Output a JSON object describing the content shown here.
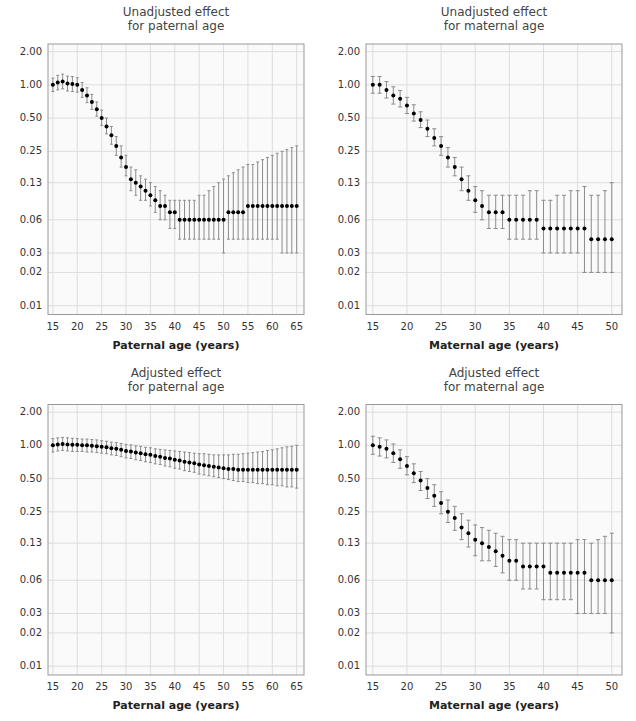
{
  "chart_data": [
    {
      "type": "scatter",
      "title": "Unadjusted effect\nfor paternal age",
      "x_label": "Paternal age (years)",
      "log": "y",
      "grid": true,
      "color": "#000000",
      "xlim": [
        14.0,
        66.5
      ],
      "xticks": [
        15,
        20,
        25,
        30,
        35,
        40,
        45,
        50,
        55,
        60,
        65
      ],
      "ylim": [
        0.008317637711026709,
        2.344228815319922
      ],
      "yticks": [
        0.01,
        0.02,
        0.03,
        0.06,
        0.13,
        0.25,
        {
          "value": 0.5,
          "label": "0.50"
        },
        {
          "value": 1.0,
          "label": "1.00"
        },
        {
          "value": 2.0,
          "label": "2.00"
        }
      ],
      "x": [
        15,
        16,
        17,
        18,
        19,
        20,
        21,
        22,
        23,
        24,
        25,
        26,
        27,
        28,
        29,
        30,
        31,
        32,
        33,
        34,
        35,
        36,
        37,
        38,
        39,
        40,
        41,
        42,
        43,
        44,
        45,
        46,
        47,
        48,
        49,
        50,
        51,
        52,
        53,
        54,
        55,
        56,
        57,
        58,
        59,
        60,
        61,
        62,
        63,
        64,
        65
      ],
      "values": [
        1.0,
        1.05,
        1.07,
        1.03,
        1.02,
        1.0,
        0.9,
        0.8,
        0.7,
        0.6,
        0.5,
        0.42,
        0.35,
        0.28,
        0.22,
        0.18,
        0.14,
        0.13,
        0.12,
        0.11,
        0.1,
        0.09,
        0.08,
        0.08,
        0.07,
        0.07,
        0.06,
        0.06,
        0.06,
        0.06,
        0.06,
        0.06,
        0.06,
        0.06,
        0.06,
        0.06,
        0.07,
        0.07,
        0.07,
        0.07,
        0.08,
        0.08,
        0.08,
        0.08,
        0.08,
        0.08,
        0.08,
        0.08,
        0.08,
        0.08,
        0.08
      ],
      "lower": [
        0.87,
        0.9,
        0.92,
        0.88,
        0.87,
        0.86,
        0.77,
        0.69,
        0.6,
        0.52,
        0.43,
        0.36,
        0.29,
        0.23,
        0.18,
        0.15,
        0.11,
        0.1,
        0.09,
        0.09,
        0.08,
        0.07,
        0.06,
        0.06,
        0.05,
        0.05,
        0.04,
        0.04,
        0.04,
        0.04,
        0.04,
        0.04,
        0.04,
        0.04,
        0.04,
        0.03,
        0.04,
        0.04,
        0.04,
        0.04,
        0.04,
        0.04,
        0.04,
        0.04,
        0.04,
        0.04,
        0.04,
        0.03,
        0.03,
        0.03,
        0.03
      ],
      "upper": [
        1.15,
        1.22,
        1.25,
        1.2,
        1.19,
        1.16,
        1.05,
        0.94,
        0.82,
        0.7,
        0.59,
        0.5,
        0.42,
        0.34,
        0.28,
        0.23,
        0.18,
        0.17,
        0.15,
        0.14,
        0.13,
        0.12,
        0.11,
        0.1,
        0.09,
        0.09,
        0.09,
        0.09,
        0.09,
        0.09,
        0.1,
        0.1,
        0.11,
        0.12,
        0.13,
        0.14,
        0.15,
        0.16,
        0.17,
        0.18,
        0.19,
        0.19,
        0.2,
        0.21,
        0.22,
        0.23,
        0.24,
        0.25,
        0.26,
        0.27,
        0.28
      ]
    },
    {
      "type": "scatter",
      "title": "Unadjusted effect\nfor maternal age",
      "x_label": "Maternal age (years)",
      "log": "y",
      "grid": true,
      "color": "#000000",
      "xlim": [
        14.0,
        51.5
      ],
      "xticks": [
        15,
        20,
        25,
        30,
        35,
        40,
        45,
        50
      ],
      "ylim": [
        0.008317637711026709,
        2.344228815319922
      ],
      "yticks": [
        0.01,
        0.02,
        0.03,
        0.06,
        0.13,
        0.25,
        {
          "value": 0.5,
          "label": "0.50"
        },
        {
          "value": 1.0,
          "label": "1.00"
        },
        {
          "value": 2.0,
          "label": "2.00"
        }
      ],
      "x": [
        15,
        16,
        17,
        18,
        19,
        20,
        21,
        22,
        23,
        24,
        25,
        26,
        27,
        28,
        29,
        30,
        31,
        32,
        33,
        34,
        35,
        36,
        37,
        38,
        39,
        40,
        41,
        42,
        43,
        44,
        45,
        46,
        47,
        48,
        49,
        50
      ],
      "values": [
        1.0,
        1.0,
        0.9,
        0.8,
        0.75,
        0.65,
        0.55,
        0.48,
        0.4,
        0.33,
        0.28,
        0.22,
        0.18,
        0.14,
        0.11,
        0.09,
        0.08,
        0.07,
        0.07,
        0.07,
        0.06,
        0.06,
        0.06,
        0.06,
        0.06,
        0.05,
        0.05,
        0.05,
        0.05,
        0.05,
        0.05,
        0.05,
        0.04,
        0.04,
        0.04,
        0.04
      ],
      "lower": [
        0.84,
        0.84,
        0.76,
        0.67,
        0.63,
        0.55,
        0.47,
        0.41,
        0.34,
        0.28,
        0.23,
        0.18,
        0.15,
        0.11,
        0.09,
        0.07,
        0.06,
        0.05,
        0.05,
        0.05,
        0.04,
        0.04,
        0.04,
        0.04,
        0.04,
        0.03,
        0.03,
        0.03,
        0.03,
        0.03,
        0.03,
        0.02,
        0.02,
        0.02,
        0.02,
        0.02
      ],
      "upper": [
        1.19,
        1.19,
        1.07,
        0.96,
        0.89,
        0.77,
        0.66,
        0.57,
        0.48,
        0.4,
        0.34,
        0.27,
        0.22,
        0.18,
        0.15,
        0.12,
        0.11,
        0.1,
        0.1,
        0.1,
        0.1,
        0.1,
        0.1,
        0.11,
        0.11,
        0.09,
        0.09,
        0.1,
        0.1,
        0.11,
        0.11,
        0.12,
        0.1,
        0.1,
        0.11,
        0.13
      ]
    },
    {
      "type": "scatter",
      "title": "Adjusted effect\nfor paternal age",
      "x_label": "Paternal age (years)",
      "log": "y",
      "grid": true,
      "color": "#000000",
      "xlim": [
        14.0,
        66.5
      ],
      "xticks": [
        15,
        20,
        25,
        30,
        35,
        40,
        45,
        50,
        55,
        60,
        65
      ],
      "ylim": [
        0.008317637711026709,
        2.344228815319922
      ],
      "yticks": [
        0.01,
        0.02,
        0.03,
        0.06,
        0.13,
        0.25,
        {
          "value": 0.5,
          "label": "0.50"
        },
        {
          "value": 1.0,
          "label": "1.00"
        },
        {
          "value": 2.0,
          "label": "2.00"
        }
      ],
      "x": [
        15,
        16,
        17,
        18,
        19,
        20,
        21,
        22,
        23,
        24,
        25,
        26,
        27,
        28,
        29,
        30,
        31,
        32,
        33,
        34,
        35,
        36,
        37,
        38,
        39,
        40,
        41,
        42,
        43,
        44,
        45,
        46,
        47,
        48,
        49,
        50,
        51,
        52,
        53,
        54,
        55,
        56,
        57,
        58,
        59,
        60,
        61,
        62,
        63,
        64,
        65
      ],
      "values": [
        1.0,
        1.02,
        1.03,
        1.02,
        1.01,
        1.01,
        1.0,
        1.0,
        0.99,
        0.98,
        0.97,
        0.96,
        0.94,
        0.93,
        0.91,
        0.89,
        0.88,
        0.86,
        0.85,
        0.83,
        0.82,
        0.8,
        0.79,
        0.77,
        0.76,
        0.74,
        0.73,
        0.71,
        0.7,
        0.69,
        0.67,
        0.66,
        0.65,
        0.64,
        0.63,
        0.62,
        0.61,
        0.61,
        0.6,
        0.6,
        0.6,
        0.6,
        0.6,
        0.6,
        0.6,
        0.6,
        0.6,
        0.6,
        0.6,
        0.6,
        0.6
      ],
      "lower": [
        0.87,
        0.89,
        0.9,
        0.89,
        0.88,
        0.88,
        0.88,
        0.87,
        0.87,
        0.86,
        0.85,
        0.84,
        0.82,
        0.81,
        0.79,
        0.77,
        0.76,
        0.74,
        0.73,
        0.71,
        0.7,
        0.68,
        0.67,
        0.65,
        0.64,
        0.62,
        0.61,
        0.59,
        0.58,
        0.57,
        0.55,
        0.54,
        0.53,
        0.52,
        0.51,
        0.5,
        0.49,
        0.48,
        0.47,
        0.47,
        0.46,
        0.46,
        0.45,
        0.45,
        0.44,
        0.44,
        0.43,
        0.43,
        0.42,
        0.42,
        0.41
      ],
      "upper": [
        1.15,
        1.17,
        1.18,
        1.17,
        1.16,
        1.15,
        1.14,
        1.14,
        1.13,
        1.12,
        1.1,
        1.09,
        1.07,
        1.06,
        1.04,
        1.02,
        1.01,
        0.99,
        0.98,
        0.96,
        0.95,
        0.93,
        0.92,
        0.91,
        0.9,
        0.89,
        0.88,
        0.87,
        0.86,
        0.85,
        0.84,
        0.84,
        0.83,
        0.82,
        0.82,
        0.82,
        0.82,
        0.83,
        0.83,
        0.84,
        0.85,
        0.86,
        0.87,
        0.88,
        0.9,
        0.91,
        0.93,
        0.95,
        0.97,
        0.98,
        1.0
      ]
    },
    {
      "type": "scatter",
      "title": "Adjusted effect\nfor maternal age",
      "x_label": "Maternal age (years)",
      "log": "y",
      "grid": true,
      "color": "#000000",
      "xlim": [
        14.0,
        51.5
      ],
      "xticks": [
        15,
        20,
        25,
        30,
        35,
        40,
        45,
        50
      ],
      "ylim": [
        0.008317637711026709,
        2.344228815319922
      ],
      "yticks": [
        0.01,
        0.02,
        0.03,
        0.06,
        0.13,
        0.25,
        {
          "value": 0.5,
          "label": "0.50"
        },
        {
          "value": 1.0,
          "label": "1.00"
        },
        {
          "value": 2.0,
          "label": "2.00"
        }
      ],
      "x": [
        15,
        16,
        17,
        18,
        19,
        20,
        21,
        22,
        23,
        24,
        25,
        26,
        27,
        28,
        29,
        30,
        31,
        32,
        33,
        34,
        35,
        36,
        37,
        38,
        39,
        40,
        41,
        42,
        43,
        44,
        45,
        46,
        47,
        48,
        49,
        50
      ],
      "values": [
        1.0,
        0.97,
        0.93,
        0.85,
        0.75,
        0.65,
        0.56,
        0.48,
        0.41,
        0.35,
        0.3,
        0.25,
        0.22,
        0.18,
        0.16,
        0.14,
        0.13,
        0.12,
        0.11,
        0.1,
        0.09,
        0.09,
        0.08,
        0.08,
        0.08,
        0.08,
        0.07,
        0.07,
        0.07,
        0.07,
        0.07,
        0.07,
        0.06,
        0.06,
        0.06,
        0.06
      ],
      "lower": [
        0.83,
        0.8,
        0.77,
        0.7,
        0.62,
        0.54,
        0.46,
        0.39,
        0.33,
        0.28,
        0.24,
        0.2,
        0.17,
        0.14,
        0.12,
        0.1,
        0.09,
        0.09,
        0.08,
        0.07,
        0.06,
        0.06,
        0.05,
        0.05,
        0.05,
        0.04,
        0.04,
        0.04,
        0.04,
        0.04,
        0.03,
        0.03,
        0.03,
        0.03,
        0.03,
        0.02
      ],
      "upper": [
        1.21,
        1.17,
        1.12,
        1.03,
        0.91,
        0.79,
        0.68,
        0.58,
        0.5,
        0.44,
        0.38,
        0.32,
        0.28,
        0.24,
        0.21,
        0.19,
        0.18,
        0.17,
        0.16,
        0.15,
        0.14,
        0.14,
        0.13,
        0.13,
        0.13,
        0.13,
        0.13,
        0.13,
        0.13,
        0.13,
        0.14,
        0.14,
        0.13,
        0.14,
        0.15,
        0.16
      ]
    }
  ]
}
